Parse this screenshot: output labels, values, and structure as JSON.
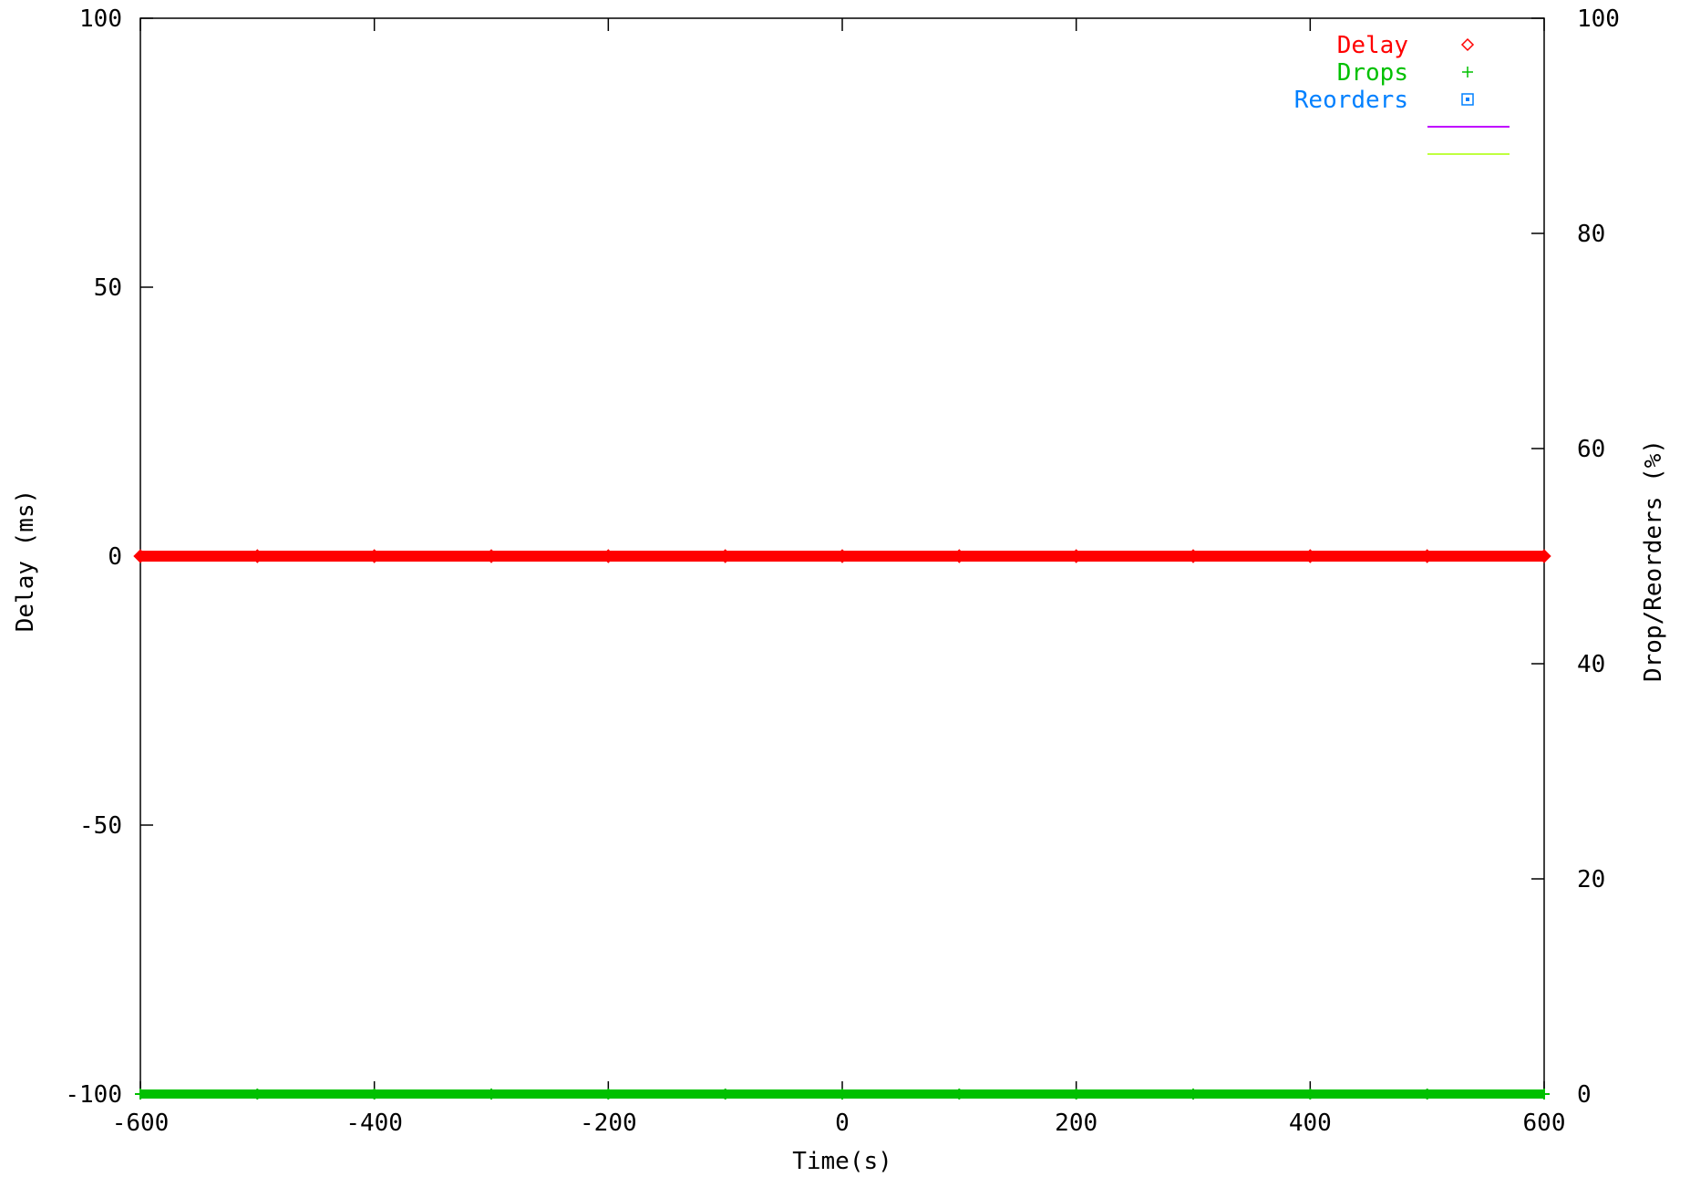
{
  "chart_data": {
    "type": "line",
    "title": "",
    "xlabel": "Time(s)",
    "ylabel": "Delay (ms)",
    "y2label": "Drop/Reorders (%)",
    "xlim": [
      -600,
      600
    ],
    "ylim": [
      -100,
      100
    ],
    "y2lim": [
      0,
      100
    ],
    "x_ticks": [
      "-600",
      "-400",
      "-200",
      "0",
      "200",
      "400",
      "600"
    ],
    "y_ticks": [
      "-100",
      "-50",
      "0",
      "50",
      "100"
    ],
    "y2_ticks": [
      "0",
      "20",
      "40",
      "60",
      "80",
      "100"
    ],
    "grid": false,
    "legend_position": "top-right",
    "series": [
      {
        "name": "Delay",
        "axis": "left",
        "marker": "diamond",
        "color": "#ff0000",
        "x": [
          -600,
          -500,
          -400,
          -300,
          -200,
          -100,
          0,
          100,
          200,
          300,
          400,
          500,
          600
        ],
        "values": [
          0,
          0,
          0,
          0,
          0,
          0,
          0,
          0,
          0,
          0,
          0,
          0,
          0
        ]
      },
      {
        "name": "Drops",
        "axis": "right",
        "marker": "plus",
        "color": "#00c000",
        "x": [
          -600,
          -500,
          -400,
          -300,
          -200,
          -100,
          0,
          100,
          200,
          300,
          400,
          500,
          600
        ],
        "values": [
          0,
          0,
          0,
          0,
          0,
          0,
          0,
          0,
          0,
          0,
          0,
          0,
          0
        ]
      },
      {
        "name": "Reorders",
        "axis": "right",
        "marker": "box",
        "color": "#0080ff",
        "x": [],
        "values": []
      }
    ],
    "legend_extra_lines": [
      {
        "color": "#c000ff"
      },
      {
        "color": "#c0ff40"
      }
    ]
  }
}
